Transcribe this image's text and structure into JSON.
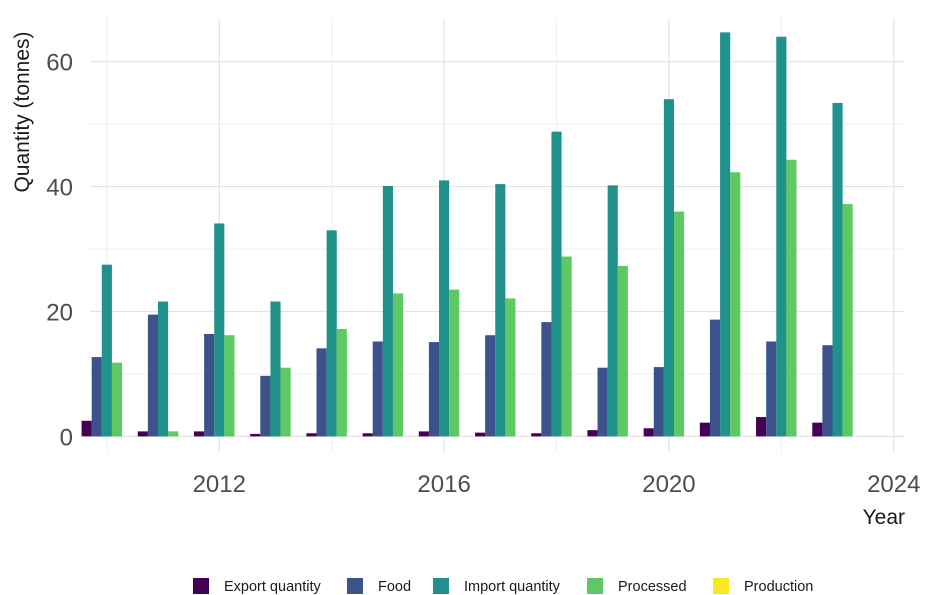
{
  "chart_data": {
    "type": "bar",
    "title": "",
    "xlabel": "Year",
    "ylabel": "Quantity (tonnes)",
    "x": [
      2010,
      2011,
      2012,
      2013,
      2014,
      2015,
      2016,
      2017,
      2018,
      2019,
      2020,
      2021,
      2022,
      2023
    ],
    "xlim": [
      2009.7,
      2024.2
    ],
    "ylim": [
      -2.5,
      67
    ],
    "x_ticks": [
      2012,
      2016,
      2020,
      2024
    ],
    "y_ticks": [
      0,
      20,
      40,
      60
    ],
    "grid": true,
    "legend_position": "bottom",
    "series": [
      {
        "name": "Export quantity",
        "color": "#440154",
        "values": [
          2.5,
          0.8,
          0.8,
          0.4,
          0.5,
          0.5,
          0.8,
          0.6,
          0.5,
          1.0,
          1.3,
          2.2,
          3.1,
          2.2
        ]
      },
      {
        "name": "Food",
        "color": "#3b528b",
        "values": [
          12.7,
          19.5,
          16.4,
          9.7,
          14.1,
          15.2,
          15.1,
          16.2,
          18.3,
          11.0,
          11.1,
          18.7,
          15.2,
          14.6
        ]
      },
      {
        "name": "Import quantity",
        "color": "#21918c",
        "values": [
          27.5,
          21.6,
          34.1,
          21.6,
          33.0,
          40.1,
          41.0,
          40.4,
          48.8,
          40.2,
          54.0,
          64.7,
          64.0,
          53.4
        ]
      },
      {
        "name": "Processed",
        "color": "#5ec962",
        "values": [
          11.8,
          0.8,
          16.2,
          11.0,
          17.2,
          22.9,
          23.5,
          22.1,
          28.8,
          27.3,
          36.0,
          42.3,
          44.3,
          37.2
        ]
      },
      {
        "name": "Production",
        "color": "#fde725",
        "values": [
          0,
          0,
          0,
          0,
          0,
          0,
          0,
          0,
          0,
          0,
          0,
          0,
          0,
          0
        ]
      }
    ]
  }
}
